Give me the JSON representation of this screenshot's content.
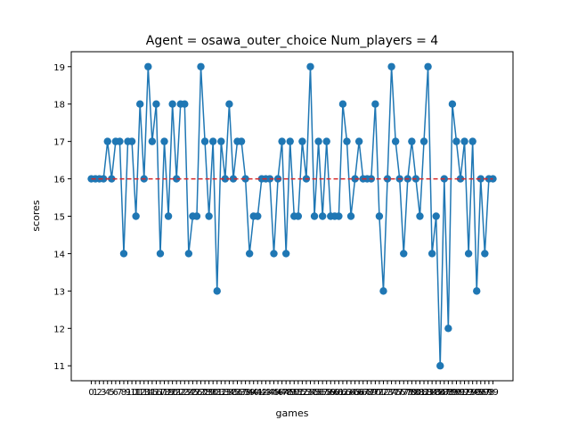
{
  "chart_data": {
    "type": "line",
    "title": "Agent = osawa_outer_choice  Num_players = 4",
    "xlabel": "games",
    "ylabel": "scores",
    "xlim": [
      -4.95,
      103.95
    ],
    "ylim": [
      10.6,
      19.4
    ],
    "yticks": [
      11,
      12,
      13,
      14,
      15,
      16,
      17,
      18,
      19
    ],
    "grid": false,
    "series": [
      {
        "color": "#1f77b4",
        "marker": "circle",
        "x": [
          0,
          1,
          2,
          3,
          4,
          5,
          6,
          7,
          8,
          9,
          10,
          11,
          12,
          13,
          14,
          15,
          16,
          17,
          18,
          19,
          20,
          21,
          22,
          23,
          24,
          25,
          26,
          27,
          28,
          29,
          30,
          31,
          32,
          33,
          34,
          35,
          36,
          37,
          38,
          39,
          40,
          41,
          42,
          43,
          44,
          45,
          46,
          47,
          48,
          49,
          50,
          51,
          52,
          53,
          54,
          55,
          56,
          57,
          58,
          59,
          60,
          61,
          62,
          63,
          64,
          65,
          66,
          67,
          68,
          69,
          70,
          71,
          72,
          73,
          74,
          75,
          76,
          77,
          78,
          79,
          80,
          81,
          82,
          83,
          84,
          85,
          86,
          87,
          88,
          89,
          90,
          91,
          92,
          93,
          94,
          95,
          96,
          97,
          98,
          99
        ],
        "values": [
          16,
          16,
          16,
          16,
          17,
          16,
          17,
          17,
          14,
          17,
          17,
          15,
          18,
          16,
          19,
          17,
          18,
          14,
          17,
          15,
          18,
          16,
          18,
          18,
          14,
          15,
          15,
          19,
          17,
          15,
          17,
          13,
          17,
          16,
          18,
          16,
          17,
          17,
          16,
          14,
          15,
          15,
          16,
          16,
          16,
          14,
          16,
          17,
          14,
          17,
          15,
          15,
          17,
          16,
          19,
          15,
          17,
          15,
          17,
          15,
          15,
          15,
          18,
          17,
          15,
          16,
          17,
          16,
          16,
          16,
          18,
          15,
          13,
          16,
          19,
          17,
          16,
          14,
          16,
          17,
          16,
          15,
          17,
          19,
          14,
          15,
          11,
          16,
          12,
          18,
          17,
          16,
          17,
          14,
          17,
          13,
          16,
          14,
          16,
          16
        ]
      }
    ],
    "reference_line": {
      "y": 16,
      "color": "#d62728",
      "style": "dashed"
    }
  }
}
